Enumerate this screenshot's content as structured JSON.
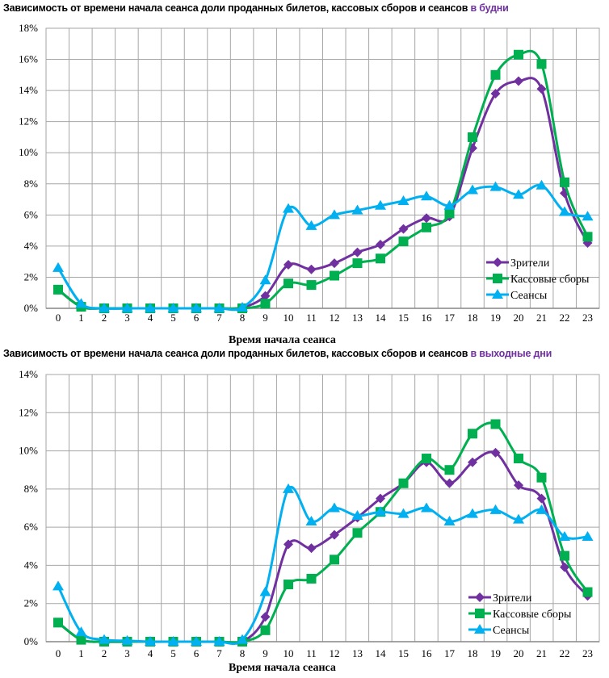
{
  "chart_data": [
    {
      "type": "line",
      "title": "Зависимость от времени начала сеанса доли проданных билетов, кассовых сборов и сеансов",
      "title_highlight": "в будни",
      "xlabel": "Время начала сеанса",
      "ylabel": "",
      "categories": [
        "0",
        "1",
        "2",
        "3",
        "4",
        "5",
        "6",
        "7",
        "8",
        "9",
        "10",
        "11",
        "12",
        "13",
        "14",
        "15",
        "16",
        "17",
        "18",
        "19",
        "20",
        "21",
        "22",
        "23"
      ],
      "ylim": [
        0,
        18
      ],
      "yticks": [
        "0%",
        "2%",
        "4%",
        "6%",
        "8%",
        "10%",
        "12%",
        "14%",
        "16%",
        "18%"
      ],
      "grid": true,
      "smooth": true,
      "legend_position": "bottom-right",
      "series": [
        {
          "name": "Зрители",
          "color": "#7030a0",
          "marker": "diamond",
          "values": [
            1.2,
            0.1,
            0,
            0,
            0,
            0,
            0,
            0,
            0.05,
            0.8,
            2.8,
            2.5,
            2.9,
            3.6,
            4.1,
            5.1,
            5.8,
            5.9,
            10.3,
            13.8,
            14.6,
            14.1,
            7.4,
            4.2
          ]
        },
        {
          "name": "Кассовые сборы",
          "color": "#00b050",
          "marker": "square",
          "values": [
            1.2,
            0.1,
            0,
            0,
            0,
            0,
            0,
            0,
            0,
            0.3,
            1.6,
            1.5,
            2.1,
            2.9,
            3.2,
            4.3,
            5.2,
            6.1,
            11.0,
            15.0,
            16.3,
            15.7,
            8.1,
            4.6
          ]
        },
        {
          "name": "Сеансы",
          "color": "#00b0f0",
          "marker": "triangle",
          "values": [
            2.6,
            0.3,
            0,
            0,
            0,
            0,
            0,
            0,
            0.05,
            1.8,
            6.4,
            5.3,
            6.0,
            6.3,
            6.6,
            6.9,
            7.2,
            6.6,
            7.6,
            7.8,
            7.3,
            7.9,
            6.2,
            5.9
          ]
        }
      ]
    },
    {
      "type": "line",
      "title": "Зависимость от времени начала сеанса доли проданных билетов, кассовых сборов и сеансов",
      "title_highlight": "в выходные дни",
      "xlabel": "Время начала сеанса",
      "ylabel": "",
      "categories": [
        "0",
        "1",
        "2",
        "3",
        "4",
        "5",
        "6",
        "7",
        "8",
        "9",
        "10",
        "11",
        "12",
        "13",
        "14",
        "15",
        "16",
        "17",
        "18",
        "19",
        "20",
        "21",
        "22",
        "23"
      ],
      "ylim": [
        0,
        14
      ],
      "yticks": [
        "0%",
        "2%",
        "4%",
        "6%",
        "8%",
        "10%",
        "12%",
        "14%"
      ],
      "grid": true,
      "smooth": true,
      "legend_position": "bottom-right",
      "series": [
        {
          "name": "Зрители",
          "color": "#7030a0",
          "marker": "diamond",
          "values": [
            1.0,
            0.1,
            0,
            0,
            0,
            0,
            0,
            0,
            0,
            1.3,
            5.1,
            4.9,
            5.6,
            6.5,
            7.5,
            8.3,
            9.4,
            8.3,
            9.4,
            9.9,
            8.2,
            7.5,
            3.9,
            2.4
          ]
        },
        {
          "name": "Кассовые сборы",
          "color": "#00b050",
          "marker": "square",
          "values": [
            1.0,
            0.1,
            0,
            0,
            0,
            0,
            0,
            0,
            0,
            0.6,
            3.0,
            3.3,
            4.3,
            5.7,
            6.8,
            8.3,
            9.6,
            9.0,
            10.9,
            11.4,
            9.6,
            8.6,
            4.5,
            2.6
          ]
        },
        {
          "name": "Сеансы",
          "color": "#00b0f0",
          "marker": "triangle",
          "values": [
            2.9,
            0.5,
            0.1,
            0.05,
            0,
            0,
            0,
            0,
            0.1,
            2.6,
            8.0,
            6.3,
            7.0,
            6.6,
            6.8,
            6.7,
            7.0,
            6.3,
            6.7,
            6.9,
            6.4,
            6.9,
            5.5,
            5.5
          ]
        }
      ]
    }
  ]
}
